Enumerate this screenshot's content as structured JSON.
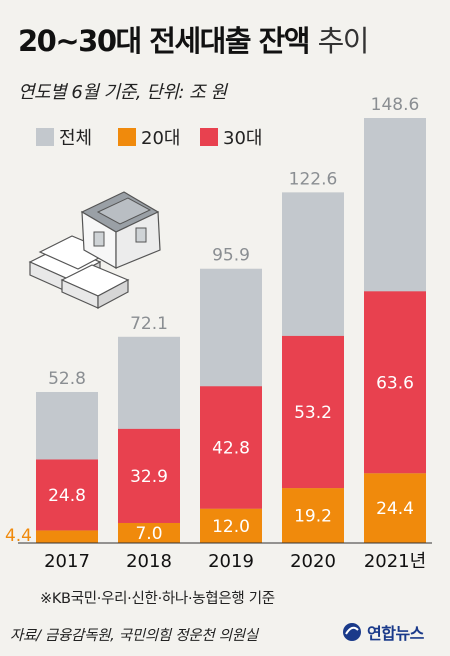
{
  "header": {
    "title_main": "20~30대 전세대출 잔액",
    "title_light": "추이",
    "subtitle": "연도별 6월 기준, 단위: 조 원"
  },
  "legend": [
    {
      "label": "전체",
      "color": "#c3c8cd"
    },
    {
      "label": "20대",
      "color": "#f08a0c"
    },
    {
      "label": "30대",
      "color": "#e8414f"
    }
  ],
  "chart_data": {
    "type": "bar",
    "categories": [
      "2017",
      "2018",
      "2019",
      "2020",
      "2021년"
    ],
    "series": [
      {
        "name": "전체",
        "values": [
          52.8,
          72.1,
          95.9,
          122.6,
          148.6
        ]
      },
      {
        "name": "20대",
        "values": [
          4.4,
          7.0,
          12.0,
          19.2,
          24.4
        ]
      },
      {
        "name": "30대",
        "values": [
          24.8,
          32.9,
          42.8,
          53.2,
          63.6
        ]
      }
    ],
    "value_labels": {
      "total": [
        "52.8",
        "72.1",
        "95.9",
        "122.6",
        "148.6"
      ],
      "age20": [
        "4.4",
        "7.0",
        "12.0",
        "19.2",
        "24.4"
      ],
      "age30": [
        "24.8",
        "32.9",
        "42.8",
        "53.2",
        "63.6"
      ]
    },
    "ylim": [
      0,
      148.6
    ],
    "grid": false,
    "legend_position": "top-left"
  },
  "footer": {
    "note": "※KB국민·우리·신한·하나·농협은행 기준",
    "source": "자료/ 금융감독원, 국민의힘 정운천 의원실",
    "logo": "연합뉴스"
  }
}
